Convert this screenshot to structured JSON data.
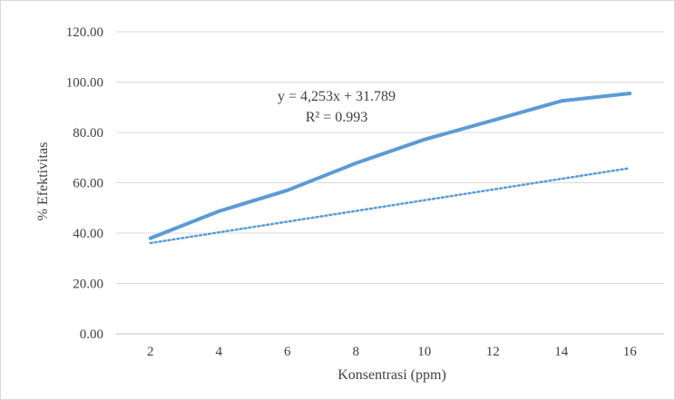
{
  "chart_data": {
    "type": "line",
    "title": "",
    "xlabel": "Konsentrasi (ppm)",
    "ylabel": "% Efektivitas",
    "categories": [
      "2",
      "4",
      "6",
      "8",
      "10",
      "12",
      "14",
      "16"
    ],
    "x": [
      2,
      4,
      6,
      8,
      10,
      12,
      14,
      16
    ],
    "series": [
      {
        "values": [
          38.0,
          48.7,
          57.0,
          67.8,
          77.2,
          84.8,
          92.5,
          95.5
        ],
        "color": "#5b9bd5",
        "style": "solid"
      }
    ],
    "trendline": {
      "type": "linear",
      "slope": 4.253,
      "intercept": 31.789,
      "equation": "y = 4,253x + 31.789",
      "r_squared_label": "R² = 0.993",
      "color": "#5b9bd5",
      "style": "dotted"
    },
    "ylim": [
      0,
      120
    ],
    "y_ticks": [
      "0.00",
      "20.00",
      "40.00",
      "60.00",
      "80.00",
      "100.00",
      "120.00"
    ],
    "grid": true,
    "legend": "none"
  }
}
